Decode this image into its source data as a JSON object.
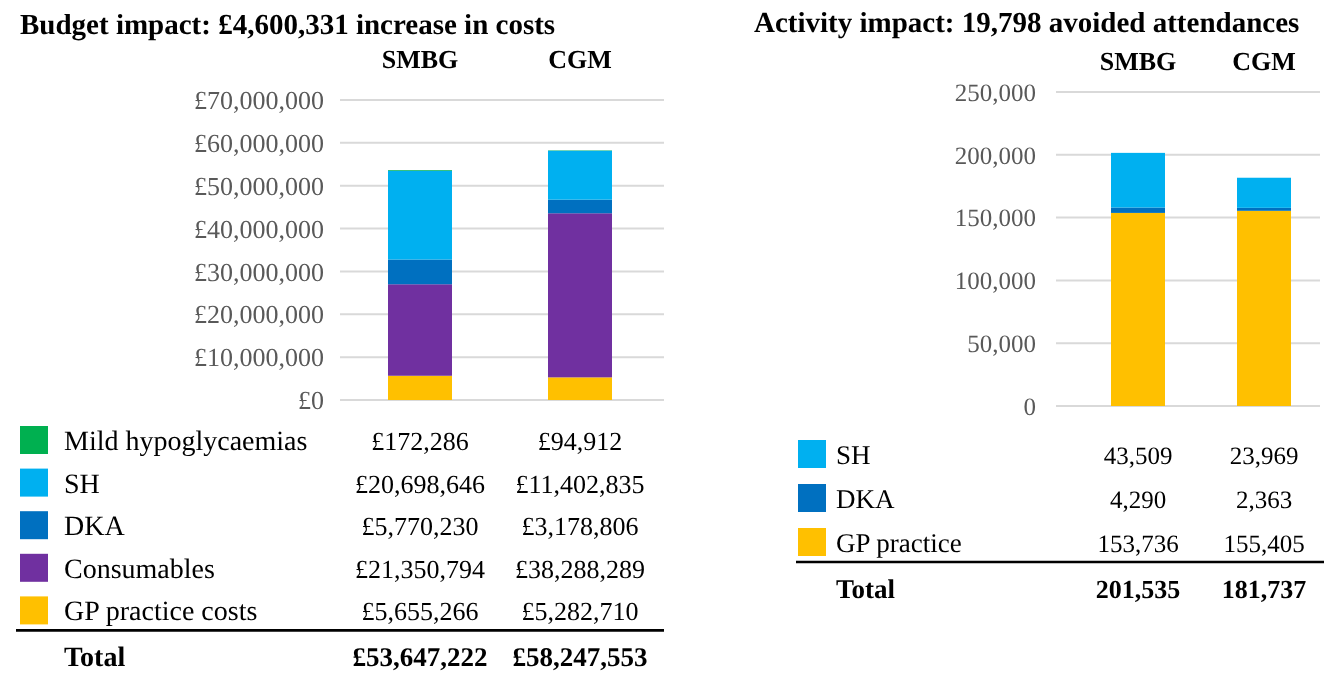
{
  "chart_data": [
    {
      "type": "bar",
      "stacked": true,
      "title": "Budget impact: £4,600,331 increase in costs",
      "categories": [
        "SMBG",
        "CGM"
      ],
      "ylim": [
        0,
        70000000
      ],
      "yticks": [
        {
          "value": 0,
          "label": "£0"
        },
        {
          "value": 10000000,
          "label": "£10,000,000"
        },
        {
          "value": 20000000,
          "label": "£20,000,000"
        },
        {
          "value": 30000000,
          "label": "£30,000,000"
        },
        {
          "value": 40000000,
          "label": "£40,000,000"
        },
        {
          "value": 50000000,
          "label": "£50,000,000"
        },
        {
          "value": 60000000,
          "label": "£60,000,000"
        },
        {
          "value": 70000000,
          "label": "£70,000,000"
        }
      ],
      "grid": "y",
      "legend": "bottom",
      "annotations": [
        "Total",
        "£53,647,222",
        "£58,247,553"
      ],
      "series": [
        {
          "name": "GP practice costs",
          "color": "#ffc000",
          "values": [
            5655266,
            5282710
          ],
          "value_labels": [
            "£5,655,266",
            "£5,282,710"
          ]
        },
        {
          "name": "Consumables",
          "color": "#7030a0",
          "values": [
            21350794,
            38288289
          ],
          "value_labels": [
            "£21,350,794",
            "£38,288,289"
          ]
        },
        {
          "name": "DKA",
          "color": "#0070c0",
          "values": [
            5770230,
            3178806
          ],
          "value_labels": [
            "£5,770,230",
            "£3,178,806"
          ]
        },
        {
          "name": "SH",
          "color": "#00b0f0",
          "values": [
            20698646,
            11402835
          ],
          "value_labels": [
            "£20,698,646",
            "£11,402,835"
          ]
        },
        {
          "name": "Mild hypoglycaemias",
          "color": "#00b050",
          "values": [
            172286,
            94912
          ],
          "value_labels": [
            "£172,286",
            "£94,912"
          ]
        }
      ]
    },
    {
      "type": "bar",
      "stacked": true,
      "title": "Activity impact: 19,798 avoided attendances",
      "categories": [
        "SMBG",
        "CGM"
      ],
      "ylim": [
        0,
        250000
      ],
      "yticks": [
        {
          "value": 0,
          "label": "0"
        },
        {
          "value": 50000,
          "label": "50,000"
        },
        {
          "value": 100000,
          "label": "100,000"
        },
        {
          "value": 150000,
          "label": "150,000"
        },
        {
          "value": 200000,
          "label": "200,000"
        },
        {
          "value": 250000,
          "label": "250,000"
        }
      ],
      "grid": "y",
      "legend": "bottom",
      "annotations": [
        "Total",
        "201,535",
        "181,737"
      ],
      "series": [
        {
          "name": "GP practice",
          "color": "#ffc000",
          "values": [
            153736,
            155405
          ],
          "value_labels": [
            "153,736",
            "155,405"
          ]
        },
        {
          "name": "DKA",
          "color": "#0070c0",
          "values": [
            4290,
            2363
          ],
          "value_labels": [
            "4,290",
            "2,363"
          ]
        },
        {
          "name": "SH",
          "color": "#00b0f0",
          "values": [
            43509,
            23969
          ],
          "value_labels": [
            "43,509",
            "23,969"
          ]
        }
      ]
    }
  ]
}
